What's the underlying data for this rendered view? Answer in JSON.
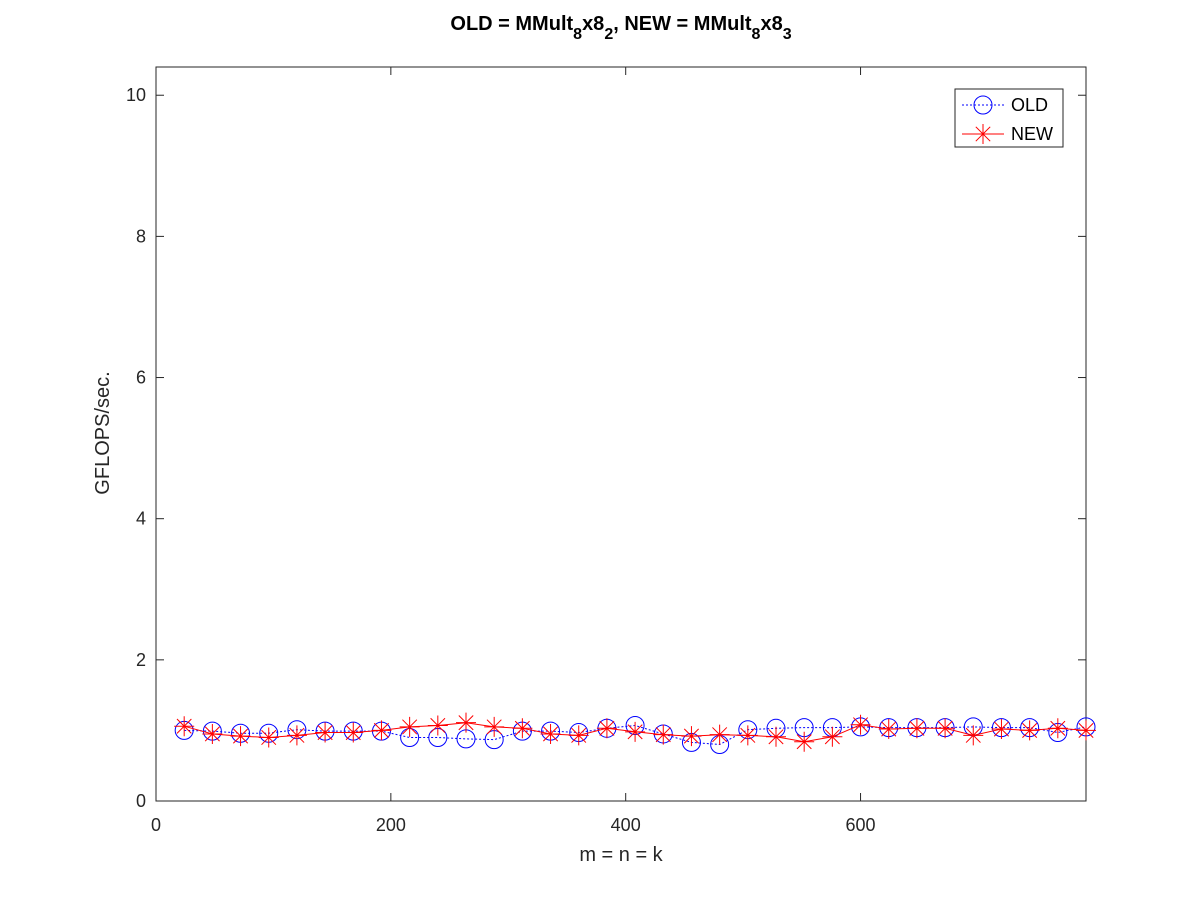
{
  "chart_data": {
    "type": "line",
    "title": {
      "prefix": "OLD = MMult",
      "sub1": "8",
      "mid1": "x8",
      "sub2": "2",
      "mid2": ", NEW = MMult",
      "sub3": "8",
      "mid3": "x8",
      "sub4": "3"
    },
    "xlabel": "m = n = k",
    "ylabel": "GFLOPS/sec.",
    "xlim": [
      0,
      792
    ],
    "ylim": [
      0,
      10.4
    ],
    "xticks": [
      0,
      200,
      400,
      600
    ],
    "yticks": [
      0,
      2,
      4,
      6,
      8,
      10
    ],
    "xtick_labels": [
      "0",
      "200",
      "400",
      "600"
    ],
    "ytick_labels": [
      "0",
      "2",
      "4",
      "6",
      "8",
      "10"
    ],
    "grid": false,
    "legend_position": "top-right",
    "x": [
      24,
      48,
      72,
      96,
      120,
      144,
      168,
      192,
      216,
      240,
      264,
      288,
      312,
      336,
      360,
      384,
      408,
      432,
      456,
      480,
      504,
      528,
      552,
      576,
      600,
      624,
      648,
      672,
      696,
      720,
      744,
      768,
      792
    ],
    "series": [
      {
        "name": "OLD",
        "color": "#0000ff",
        "marker": "circle",
        "line_style": "dotted",
        "values": [
          1.0,
          0.99,
          0.96,
          0.96,
          1.01,
          0.99,
          0.99,
          0.99,
          0.9,
          0.9,
          0.88,
          0.87,
          0.99,
          0.99,
          0.97,
          1.03,
          1.07,
          0.95,
          0.83,
          0.8,
          1.01,
          1.03,
          1.04,
          1.04,
          1.05,
          1.04,
          1.04,
          1.04,
          1.05,
          1.04,
          1.04,
          0.97,
          1.05
        ]
      },
      {
        "name": "NEW",
        "color": "#ff0000",
        "marker": "star",
        "line_style": "solid",
        "values": [
          1.06,
          0.95,
          0.92,
          0.9,
          0.93,
          0.97,
          0.97,
          1.0,
          1.05,
          1.07,
          1.11,
          1.05,
          1.03,
          0.95,
          0.93,
          1.03,
          0.98,
          0.94,
          0.92,
          0.94,
          0.93,
          0.91,
          0.84,
          0.91,
          1.08,
          1.02,
          1.03,
          1.03,
          0.93,
          1.02,
          1.0,
          1.03,
          1.0
        ]
      }
    ]
  }
}
